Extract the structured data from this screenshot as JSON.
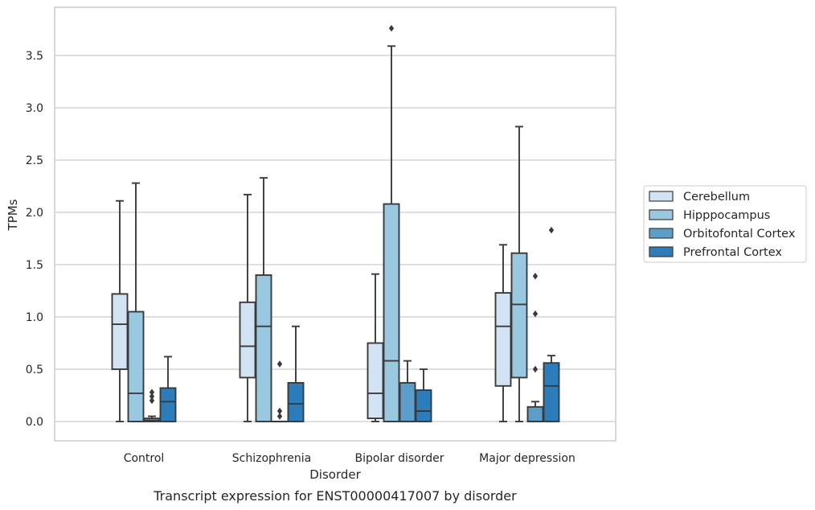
{
  "chart_data": {
    "type": "box",
    "caption": "Transcript expression for ENST00000417007 by disorder",
    "xlabel": "Disorder",
    "ylabel": "TPMs",
    "ylim": [
      -0.18,
      3.98
    ],
    "yticks": [
      "0.0",
      "0.5",
      "1.0",
      "1.5",
      "2.0",
      "2.5",
      "3.0",
      "3.5"
    ],
    "ytick_values": [
      0,
      0.5,
      1.0,
      1.5,
      2.0,
      2.5,
      3.0,
      3.5
    ],
    "grid": "horizontal",
    "legend_position": "right",
    "categories": [
      "Control",
      "Schizophrenia",
      "Bipolar disorder",
      "Major depression"
    ],
    "series": [
      {
        "name": "Cerebellum",
        "color": "#d2e3f3",
        "boxes": [
          {
            "q1": 0.5,
            "median": 0.93,
            "q3": 1.22,
            "whislo": 0.0,
            "whishi": 2.11,
            "fliers": []
          },
          {
            "q1": 0.42,
            "median": 0.72,
            "q3": 1.14,
            "whislo": 0.0,
            "whishi": 2.17,
            "fliers": []
          },
          {
            "q1": 0.03,
            "median": 0.27,
            "q3": 0.75,
            "whislo": 0.0,
            "whishi": 1.41,
            "fliers": []
          },
          {
            "q1": 0.34,
            "median": 0.91,
            "q3": 1.23,
            "whislo": 0.0,
            "whishi": 1.69,
            "fliers": []
          }
        ]
      },
      {
        "name": "Hipppocampus",
        "color": "#9ac8e0",
        "boxes": [
          {
            "q1": 0.0,
            "median": 0.27,
            "q3": 1.05,
            "whislo": 0.0,
            "whishi": 2.28,
            "fliers": []
          },
          {
            "q1": 0.0,
            "median": 0.91,
            "q3": 1.4,
            "whislo": 0.0,
            "whishi": 2.33,
            "fliers": []
          },
          {
            "q1": 0.0,
            "median": 0.58,
            "q3": 2.08,
            "whislo": 0.0,
            "whishi": 3.59,
            "fliers": [
              3.76
            ]
          },
          {
            "q1": 0.42,
            "median": 1.12,
            "q3": 1.61,
            "whislo": 0.0,
            "whishi": 2.82,
            "fliers": []
          }
        ]
      },
      {
        "name": "Orbitofontal Cortex",
        "color": "#5a9ec9",
        "boxes": [
          {
            "q1": 0.0,
            "median": 0.01,
            "q3": 0.03,
            "whislo": 0.0,
            "whishi": 0.05,
            "fliers": [
              0.2,
              0.24,
              0.28
            ]
          },
          {
            "q1": 0.0,
            "median": 0.0,
            "q3": 0.0,
            "whislo": 0.0,
            "whishi": 0.0,
            "fliers": [
              0.05,
              0.1,
              0.55
            ]
          },
          {
            "q1": 0.0,
            "median": 0.0,
            "q3": 0.37,
            "whislo": 0.0,
            "whishi": 0.58,
            "fliers": []
          },
          {
            "q1": 0.0,
            "median": 0.0,
            "q3": 0.14,
            "whislo": 0.0,
            "whishi": 0.19,
            "fliers": [
              0.5,
              1.03,
              1.39
            ]
          }
        ]
      },
      {
        "name": "Prefrontal Cortex",
        "color": "#2d7dbb",
        "boxes": [
          {
            "q1": 0.0,
            "median": 0.19,
            "q3": 0.32,
            "whislo": 0.0,
            "whishi": 0.62,
            "fliers": []
          },
          {
            "q1": 0.0,
            "median": 0.17,
            "q3": 0.37,
            "whislo": 0.0,
            "whishi": 0.91,
            "fliers": []
          },
          {
            "q1": 0.0,
            "median": 0.1,
            "q3": 0.3,
            "whislo": 0.0,
            "whishi": 0.5,
            "fliers": []
          },
          {
            "q1": 0.0,
            "median": 0.34,
            "q3": 0.56,
            "whislo": 0.0,
            "whishi": 0.63,
            "fliers": [
              1.83
            ]
          }
        ]
      }
    ]
  }
}
